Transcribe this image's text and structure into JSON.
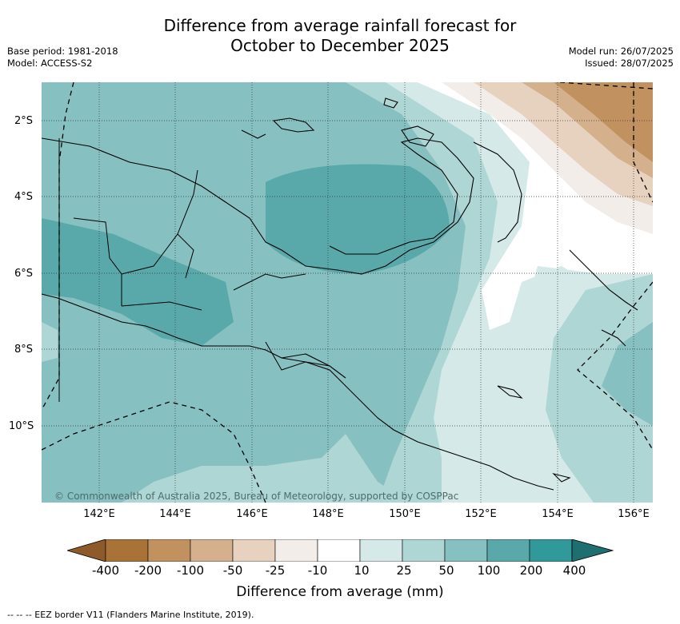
{
  "title_line1": "Difference from average rainfall forecast for",
  "title_line2": "October to December 2025",
  "base_period": "Base period: 1981-2018",
  "model": "Model: ACCESS-S2",
  "model_run": "Model run: 26/07/2025",
  "issued": "Issued: 28/07/2025",
  "copyright": "© Commonwealth of Australia 2025, Bureau of Meteorology, supported by COSPPac",
  "lat_labels": [
    "2°S",
    "4°S",
    "6°S",
    "8°S",
    "10°S"
  ],
  "lon_labels": [
    "142°E",
    "144°E",
    "146°E",
    "148°E",
    "150°E",
    "152°E",
    "154°E",
    "156°E"
  ],
  "colorbar": {
    "title": "Difference from average (mm)",
    "ticks": [
      "-400",
      "-200",
      "-100",
      "-50",
      "-25",
      "-10",
      "10",
      "25",
      "50",
      "100",
      "200",
      "400"
    ],
    "colors": [
      "#8e5a2a",
      "#a97338",
      "#c1915f",
      "#d4b08c",
      "#e7d2bf",
      "#f2ede8",
      "#ffffff",
      "#d5e9e8",
      "#aed6d5",
      "#86c0c0",
      "#59a9aa",
      "#31999a",
      "#1f6f70"
    ]
  },
  "footnote": "-- -- -- EEZ border V11 (Flanders Marine Institute, 2019)."
}
